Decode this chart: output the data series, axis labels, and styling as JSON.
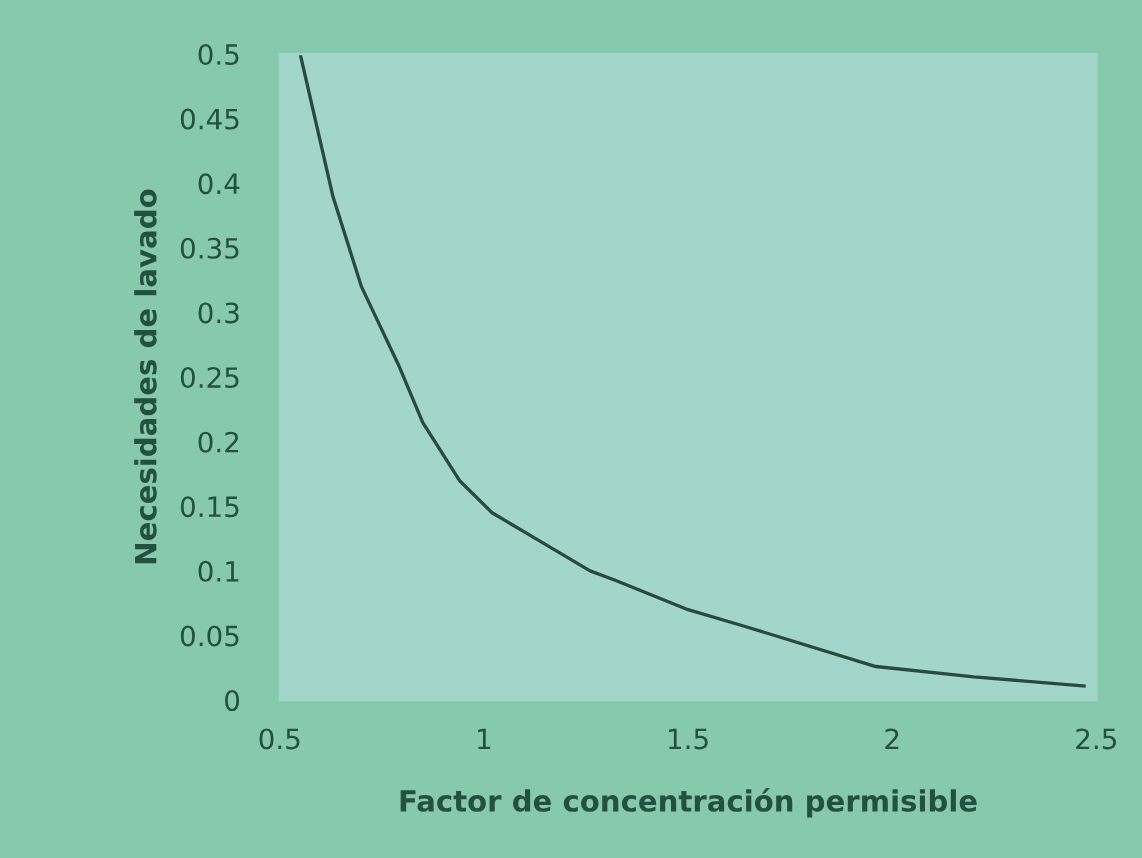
{
  "chart_data": {
    "type": "line",
    "xlabel": "Factor de concentración permisible",
    "ylabel": "Necesidades de lavado",
    "x": [
      0.55,
      0.63,
      0.7,
      0.79,
      0.85,
      0.94,
      1.02,
      1.1,
      1.26,
      1.32,
      1.5,
      1.64,
      1.96,
      2.2,
      2.47
    ],
    "series": [
      {
        "color": "#2a4a40",
        "values": [
          0.5,
          0.39,
          0.32,
          0.26,
          0.215,
          0.17,
          0.145,
          0.13,
          0.1,
          0.093,
          0.07,
          0.057,
          0.026,
          0.018,
          0.011
        ]
      }
    ],
    "xlim": [
      0.5,
      2.5
    ],
    "xticks": [
      0.5,
      1,
      1.5,
      2,
      2.5
    ],
    "ylim": [
      0,
      0.5
    ],
    "yticks": [
      0,
      0.05,
      0.1,
      0.15,
      0.2,
      0.25,
      0.3,
      0.35,
      0.4,
      0.45,
      0.5
    ],
    "grid": false,
    "legend": false,
    "marker": "none",
    "line_style": "solid"
  }
}
